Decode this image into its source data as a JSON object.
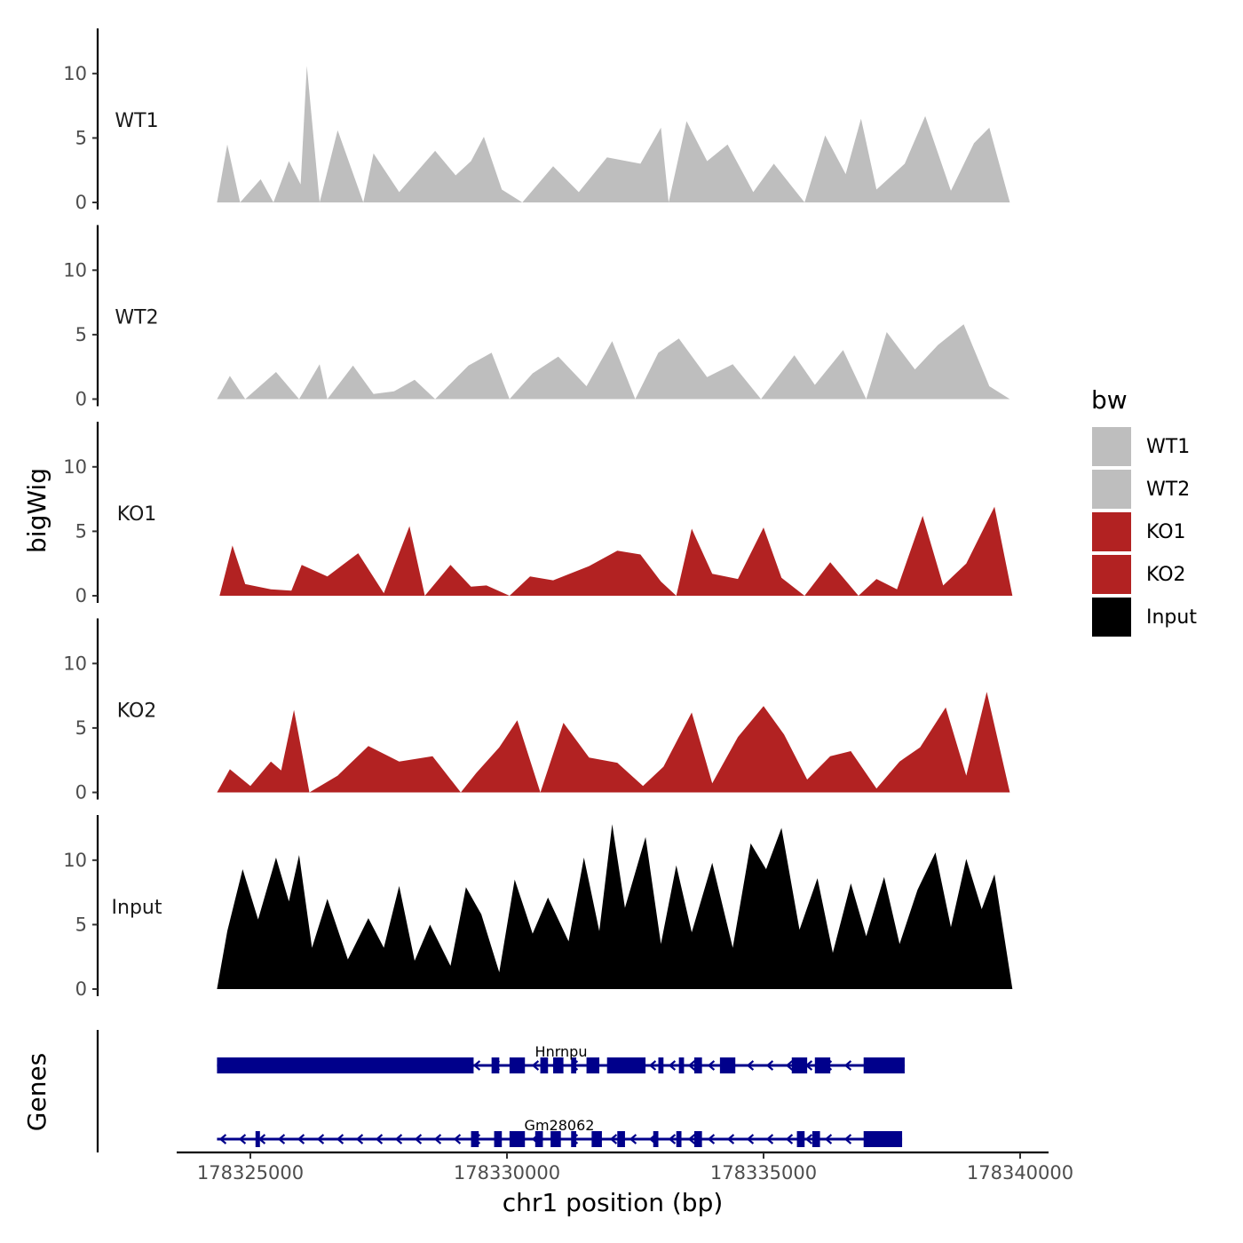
{
  "chart_data": {
    "type": "area",
    "chromosome": "chr1",
    "xlabel": "chr1 position (bp)",
    "ylabel": "bigWig",
    "genes_label": "Genes",
    "xlim": [
      178323000,
      178340500
    ],
    "xticks": [
      178325000,
      178330000,
      178335000,
      178340000
    ],
    "xtick_labels": [
      "178325000",
      "178330000",
      "178335000",
      "178340000"
    ],
    "ylim": [
      0,
      13.5
    ],
    "yticks": [
      0,
      5,
      10
    ],
    "ytick_labels": [
      "0",
      "5",
      "10"
    ],
    "grid": false,
    "legend": {
      "title": "bw",
      "placement": "right",
      "entries": [
        {
          "label": "WT1",
          "color": "#bebebe"
        },
        {
          "label": "WT2",
          "color": "#bebebe"
        },
        {
          "label": "KO1",
          "color": "#b22222"
        },
        {
          "label": "KO2",
          "color": "#b22222"
        },
        {
          "label": "Input",
          "color": "#000000"
        }
      ]
    },
    "tracks": [
      {
        "name": "WT1",
        "color": "#bebebe",
        "x": [
          178324350,
          178324550,
          178324800,
          178325200,
          178325450,
          178325750,
          178325980,
          178326100,
          178326350,
          178326700,
          178327200,
          178327400,
          178327900,
          178328600,
          178329000,
          178329300,
          178329550,
          178329900,
          178330300,
          178330900,
          178331400,
          178331950,
          178332600,
          178333000,
          178333150,
          178333500,
          178333900,
          178334300,
          178334800,
          178335200,
          178335800,
          178336200,
          178336600,
          178336900,
          178337200,
          178337750,
          178338150,
          178338650,
          178339100,
          178339400,
          178339800
        ],
        "values": [
          0,
          4.5,
          0,
          1.8,
          0,
          3.2,
          1.4,
          10.6,
          0,
          5.6,
          0,
          3.8,
          0.8,
          4.0,
          2.1,
          3.2,
          5.1,
          1.0,
          0,
          2.8,
          0.8,
          3.5,
          3.0,
          5.8,
          0,
          6.3,
          3.2,
          4.5,
          0.8,
          3.0,
          0,
          5.2,
          2.2,
          6.5,
          1.0,
          3.0,
          6.7,
          0.9,
          4.6,
          5.8,
          0
        ]
      },
      {
        "name": "WT2",
        "color": "#bebebe",
        "x": [
          178324350,
          178324600,
          178324900,
          178325500,
          178325950,
          178326350,
          178326500,
          178327000,
          178327400,
          178327800,
          178328200,
          178328600,
          178329250,
          178329700,
          178330050,
          178330500,
          178331000,
          178331550,
          178332050,
          178332500,
          178332950,
          178333350,
          178333900,
          178334400,
          178334950,
          178335600,
          178336000,
          178336550,
          178337000,
          178337400,
          178337950,
          178338400,
          178338900,
          178339400,
          178339800
        ],
        "values": [
          0,
          1.8,
          0,
          2.1,
          0,
          2.7,
          0,
          2.6,
          0.4,
          0.6,
          1.5,
          0,
          2.6,
          3.6,
          0,
          2.0,
          3.3,
          1.0,
          4.5,
          0,
          3.6,
          4.7,
          1.7,
          2.7,
          0,
          3.4,
          1.1,
          3.8,
          0,
          5.2,
          2.3,
          4.2,
          5.8,
          1.0,
          0
        ]
      },
      {
        "name": "KO1",
        "color": "#b22222",
        "x": [
          178324400,
          178324650,
          178324900,
          178325400,
          178325800,
          178326000,
          178326500,
          178327100,
          178327600,
          178328100,
          178328400,
          178328900,
          178329300,
          178329600,
          178330050,
          178330450,
          178330900,
          178331600,
          178332150,
          178332600,
          178333000,
          178333300,
          178333600,
          178334000,
          178334500,
          178335000,
          178335350,
          178335800,
          178336300,
          178336850,
          178337200,
          178337600,
          178338100,
          178338500,
          178338950,
          178339500,
          178339850
        ],
        "values": [
          0,
          3.9,
          0.9,
          0.5,
          0.4,
          2.4,
          1.5,
          3.3,
          0.2,
          5.4,
          0,
          2.4,
          0.7,
          0.8,
          0,
          1.5,
          1.2,
          2.3,
          3.5,
          3.2,
          1.1,
          0,
          5.2,
          1.7,
          1.3,
          5.3,
          1.4,
          0,
          2.6,
          0,
          1.3,
          0.5,
          6.2,
          0.8,
          2.5,
          6.9,
          0
        ]
      },
      {
        "name": "KO2",
        "color": "#b22222",
        "x": [
          178324350,
          178324600,
          178325000,
          178325400,
          178325600,
          178325850,
          178326150,
          178326700,
          178327300,
          178327900,
          178328550,
          178329100,
          178329400,
          178329850,
          178330200,
          178330650,
          178331100,
          178331600,
          178332150,
          178332650,
          178333050,
          178333600,
          178334000,
          178334500,
          178335000,
          178335400,
          178335850,
          178336300,
          178336700,
          178337200,
          178337650,
          178338050,
          178338550,
          178338950,
          178339350,
          178339800
        ],
        "values": [
          0,
          1.8,
          0.5,
          2.4,
          1.7,
          6.4,
          0,
          1.3,
          3.6,
          2.4,
          2.8,
          0,
          1.5,
          3.5,
          5.6,
          0,
          5.4,
          2.7,
          2.3,
          0.5,
          2.0,
          6.2,
          0.7,
          4.3,
          6.7,
          4.5,
          1.0,
          2.8,
          3.2,
          0.3,
          2.4,
          3.5,
          6.6,
          1.3,
          7.8,
          0
        ]
      },
      {
        "name": "Input",
        "color": "#000000",
        "x": [
          178324350,
          178324550,
          178324850,
          178325150,
          178325500,
          178325750,
          178325950,
          178326200,
          178326500,
          178326900,
          178327300,
          178327600,
          178327900,
          178328200,
          178328500,
          178328900,
          178329200,
          178329500,
          178329850,
          178330150,
          178330500,
          178330800,
          178331200,
          178331500,
          178331800,
          178332050,
          178332300,
          178332700,
          178333000,
          178333300,
          178333600,
          178334000,
          178334400,
          178334750,
          178335050,
          178335350,
          178335700,
          178336050,
          178336350,
          178336700,
          178337000,
          178337350,
          178337650,
          178338000,
          178338350,
          178338650,
          178338950,
          178339250,
          178339500,
          178339850
        ],
        "values": [
          0,
          4.5,
          9.3,
          5.4,
          10.2,
          6.8,
          10.4,
          3.2,
          7.0,
          2.3,
          5.5,
          3.2,
          8.0,
          2.2,
          5.0,
          1.8,
          7.9,
          5.8,
          1.3,
          8.5,
          4.3,
          7.1,
          3.7,
          10.2,
          4.5,
          12.8,
          6.3,
          11.8,
          3.5,
          9.6,
          4.4,
          9.8,
          3.2,
          11.3,
          9.3,
          12.5,
          4.6,
          8.6,
          2.8,
          8.2,
          4.1,
          8.7,
          3.5,
          7.7,
          10.6,
          4.8,
          10.1,
          6.2,
          8.9,
          0
        ]
      }
    ],
    "genes": [
      {
        "name": "Hnrnpu",
        "strand": "-",
        "start": 178324350,
        "end": 178337750,
        "exons": [
          [
            178324350,
            178329350
          ],
          [
            178329700,
            178329850
          ],
          [
            178330050,
            178330350
          ],
          [
            178330650,
            178330800
          ],
          [
            178330900,
            178331100
          ],
          [
            178331250,
            178331350
          ],
          [
            178331550,
            178331800
          ],
          [
            178331950,
            178332700
          ],
          [
            178332950,
            178333050
          ],
          [
            178333350,
            178333450
          ],
          [
            178333650,
            178333800
          ],
          [
            178334150,
            178334450
          ],
          [
            178335550,
            178335850
          ],
          [
            178336000,
            178336300
          ],
          [
            178336950,
            178337750
          ]
        ]
      },
      {
        "name": "Gm28062",
        "strand": "-",
        "start": 178324350,
        "end": 178337700,
        "exons": [
          [
            178325100,
            178325150
          ],
          [
            178329300,
            178329450
          ],
          [
            178329750,
            178329900
          ],
          [
            178330050,
            178330350
          ],
          [
            178330550,
            178330700
          ],
          [
            178330850,
            178331050
          ],
          [
            178331250,
            178331350
          ],
          [
            178331650,
            178331850
          ],
          [
            178332150,
            178332300
          ],
          [
            178332850,
            178332950
          ],
          [
            178333300,
            178333400
          ],
          [
            178333650,
            178333800
          ],
          [
            178335650,
            178335800
          ],
          [
            178335950,
            178336100
          ],
          [
            178336950,
            178337700
          ]
        ]
      }
    ]
  }
}
